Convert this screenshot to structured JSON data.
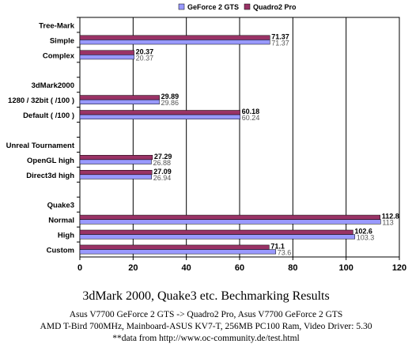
{
  "chart_data": {
    "type": "bar",
    "orientation": "horizontal",
    "legend": "top",
    "grid": true,
    "xlim": [
      0,
      120
    ],
    "xticks": [
      0,
      20,
      40,
      60,
      80,
      100,
      120
    ],
    "series": [
      {
        "name": "GeForce 2 GTS",
        "color": "#9999ff",
        "values": [
          71.37,
          20.37,
          29.86,
          60.24,
          26.88,
          26.94,
          113,
          103.3,
          73.6
        ]
      },
      {
        "name": "Quadro2 Pro",
        "color": "#993366",
        "values": [
          71.37,
          20.37,
          29.89,
          60.18,
          27.29,
          27.09,
          112.8,
          102.6,
          71.1
        ]
      }
    ],
    "rows": [
      {
        "label": "Tree-Mark",
        "header": true
      },
      {
        "label": "Simple",
        "index": 0
      },
      {
        "label": "Complex",
        "index": 1
      },
      {
        "label": "",
        "header": true
      },
      {
        "label": "3dMark2000",
        "header": true
      },
      {
        "label": "1280 / 32bit ( /100 )",
        "index": 2
      },
      {
        "label": "Default ( /100 )",
        "index": 3
      },
      {
        "label": "",
        "header": true
      },
      {
        "label": "Unreal Tournament",
        "header": true
      },
      {
        "label": "OpenGL high",
        "index": 4
      },
      {
        "label": "Direct3d high",
        "index": 5
      },
      {
        "label": "",
        "header": true
      },
      {
        "label": "Quake3",
        "header": true
      },
      {
        "label": "Normal",
        "index": 6
      },
      {
        "label": "High",
        "index": 7
      },
      {
        "label": "Custom",
        "index": 8
      }
    ]
  },
  "caption": {
    "title": "3dMark 2000, Quake3 etc. Bechmarking Results",
    "line1": "Asus V7700 GeForce 2 GTS -> Quadro2 Pro, Asus V7700 GeForce 2 GTS",
    "line2": "AMD T-Bird 700MHz, Mainboard-ASUS KV7-T, 256MB PC100 Ram, Video Driver: 5.30",
    "line3": "**data from http://www.oc-community.de/test.html"
  }
}
